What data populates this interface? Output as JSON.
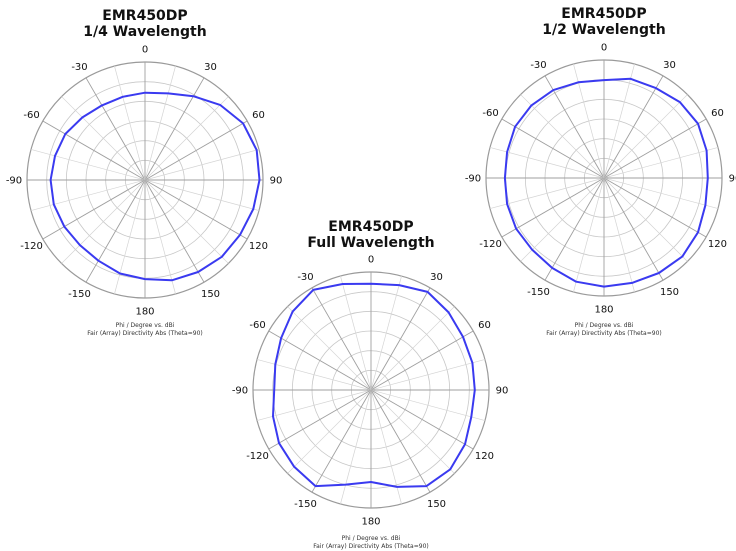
{
  "chart_data": [
    {
      "type": "polar",
      "title_line1": "EMR450DP",
      "title_line2": "1/4 Wavelength",
      "caption_line1": "Phi / Degree vs. dBi",
      "caption_line2": "Fair (Array) Directivity Abs (Theta=90)",
      "angle_labels": [
        "0",
        "30",
        "60",
        "90",
        "120",
        "150",
        "180",
        "-150",
        "-120",
        "-90",
        "-60",
        "-30"
      ],
      "grid": true,
      "series": [
        {
          "color": "#3a3af0",
          "phi": [
            0,
            15,
            30,
            45,
            60,
            75,
            90,
            105,
            120,
            135,
            150,
            165,
            180,
            -165,
            -150,
            -135,
            -120,
            -105,
            -90,
            -75,
            -60,
            -45,
            -30,
            -15
          ],
          "r_norm": [
            0.74,
            0.76,
            0.82,
            0.9,
            0.96,
            0.98,
            0.97,
            0.95,
            0.93,
            0.92,
            0.9,
            0.88,
            0.84,
            0.82,
            0.79,
            0.78,
            0.79,
            0.8,
            0.8,
            0.79,
            0.78,
            0.75,
            0.73,
            0.73
          ]
        }
      ]
    },
    {
      "type": "polar",
      "title_line1": "EMR450DP",
      "title_line2": "1/2 Wavelength",
      "caption_line1": "Phi / Degree vs. dBi",
      "caption_line2": "Fair (Array) Directivity Abs (Theta=90)",
      "angle_labels": [
        "0",
        "30",
        "60",
        "90",
        "120",
        "150",
        "180",
        "-150",
        "-120",
        "-90",
        "-60",
        "-30"
      ],
      "grid": true,
      "series": [
        {
          "color": "#3a3af0",
          "phi": [
            0,
            15,
            30,
            45,
            60,
            75,
            90,
            105,
            120,
            135,
            150,
            165,
            180,
            -165,
            -150,
            -135,
            -120,
            -105,
            -90,
            -75,
            -60,
            -45,
            -30,
            -15
          ],
          "r_norm": [
            0.83,
            0.87,
            0.88,
            0.91,
            0.92,
            0.9,
            0.88,
            0.89,
            0.92,
            0.94,
            0.93,
            0.92,
            0.92,
            0.91,
            0.88,
            0.86,
            0.86,
            0.85,
            0.84,
            0.85,
            0.87,
            0.87,
            0.86,
            0.84
          ]
        }
      ]
    },
    {
      "type": "polar",
      "title_line1": "EMR450DP",
      "title_line2": "Full Wavelength",
      "caption_line1": "Phi / Degree vs. dBi",
      "caption_line2": "Fair (Array) Directivity Abs (Theta=90)",
      "angle_labels": [
        "0",
        "30",
        "60",
        "90",
        "120",
        "150",
        "180",
        "-150",
        "-120",
        "-90",
        "-60",
        "-30"
      ],
      "grid": true,
      "series": [
        {
          "color": "#3a3af0",
          "phi": [
            0,
            15,
            30,
            45,
            60,
            75,
            90,
            105,
            120,
            135,
            150,
            165,
            180,
            -165,
            -150,
            -135,
            -120,
            -105,
            -90,
            -75,
            -60,
            -45,
            -30,
            -15
          ],
          "r_norm": [
            0.9,
            0.92,
            0.96,
            0.93,
            0.9,
            0.89,
            0.88,
            0.88,
            0.92,
            0.95,
            0.94,
            0.85,
            0.78,
            0.83,
            0.94,
            0.92,
            0.9,
            0.86,
            0.82,
            0.84,
            0.88,
            0.94,
            0.98,
            0.93
          ]
        }
      ]
    }
  ]
}
